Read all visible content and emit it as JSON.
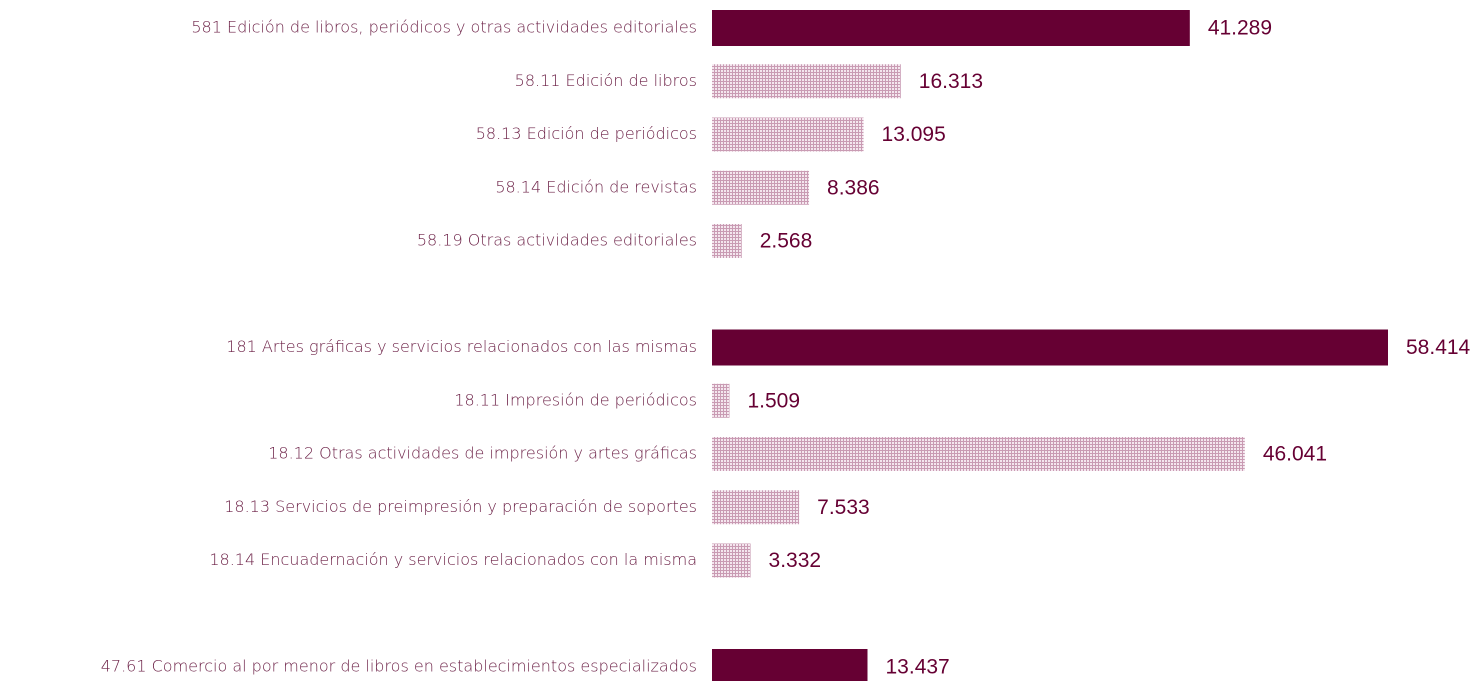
{
  "chart_data": {
    "type": "hbar",
    "categories": [
      "581 Edición de libros, periódicos y otras actividades editoriales",
      "58.11 Edición de libros",
      "58.13 Edición de periódicos",
      "58.14 Edición de revistas",
      "58.19 Otras actividades editoriales",
      null,
      "181 Artes gráficas y servicios relacionados con las mismas",
      "18.11 Impresión de periódicos",
      "18.12 Otras actividades de impresión y artes gráficas",
      "18.13 Servicios de preimpresión y preparación de soportes",
      "18.14 Encuadernación y servicios relacionados con la misma",
      null,
      "47.61 Comercio al por menor de libros en establecimientos especializados"
    ],
    "values": [
      41289,
      16313,
      13095,
      8386,
      2568,
      null,
      58414,
      1509,
      46041,
      7533,
      3332,
      null,
      13437
    ],
    "value_labels": [
      "41.289",
      "16.313",
      "13.095",
      "8.386",
      "2.568",
      null,
      "58.414",
      "1.509",
      "46.041",
      "7.533",
      "3.332",
      null,
      "13.437"
    ],
    "bar_styles": [
      "solid",
      "hatched",
      "hatched",
      "hatched",
      "hatched",
      null,
      "solid",
      "hatched",
      "hatched",
      "hatched",
      "hatched",
      null,
      "solid"
    ],
    "color": "#660033",
    "hatch_color": "#c99bb3"
  }
}
